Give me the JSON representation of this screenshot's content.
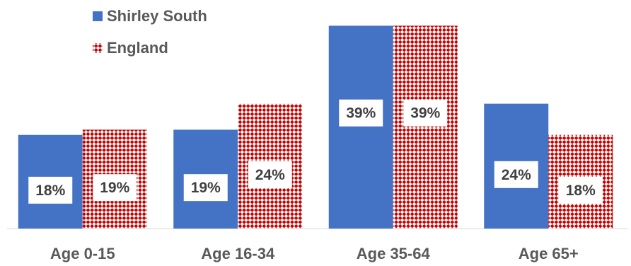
{
  "chart_data": {
    "type": "bar",
    "title": "",
    "xlabel": "",
    "ylabel": "",
    "categories": [
      "Age 0-15",
      "Age 16-34",
      "Age 35-64",
      "Age 65+"
    ],
    "series": [
      {
        "name": "Shirley South",
        "values": [
          18,
          19,
          39,
          24
        ],
        "labels": [
          "18%",
          "19%",
          "39%",
          "24%"
        ],
        "color": "#4472C4",
        "fill": "solid"
      },
      {
        "name": "England",
        "values": [
          19,
          24,
          39,
          18
        ],
        "labels": [
          "19%",
          "24%",
          "39%",
          "18%"
        ],
        "color": "#C00000",
        "fill": "checker-pattern"
      }
    ],
    "ylim": [
      0,
      40
    ],
    "grid": false,
    "legend_position": "top-left",
    "y_axis_visible": false
  }
}
